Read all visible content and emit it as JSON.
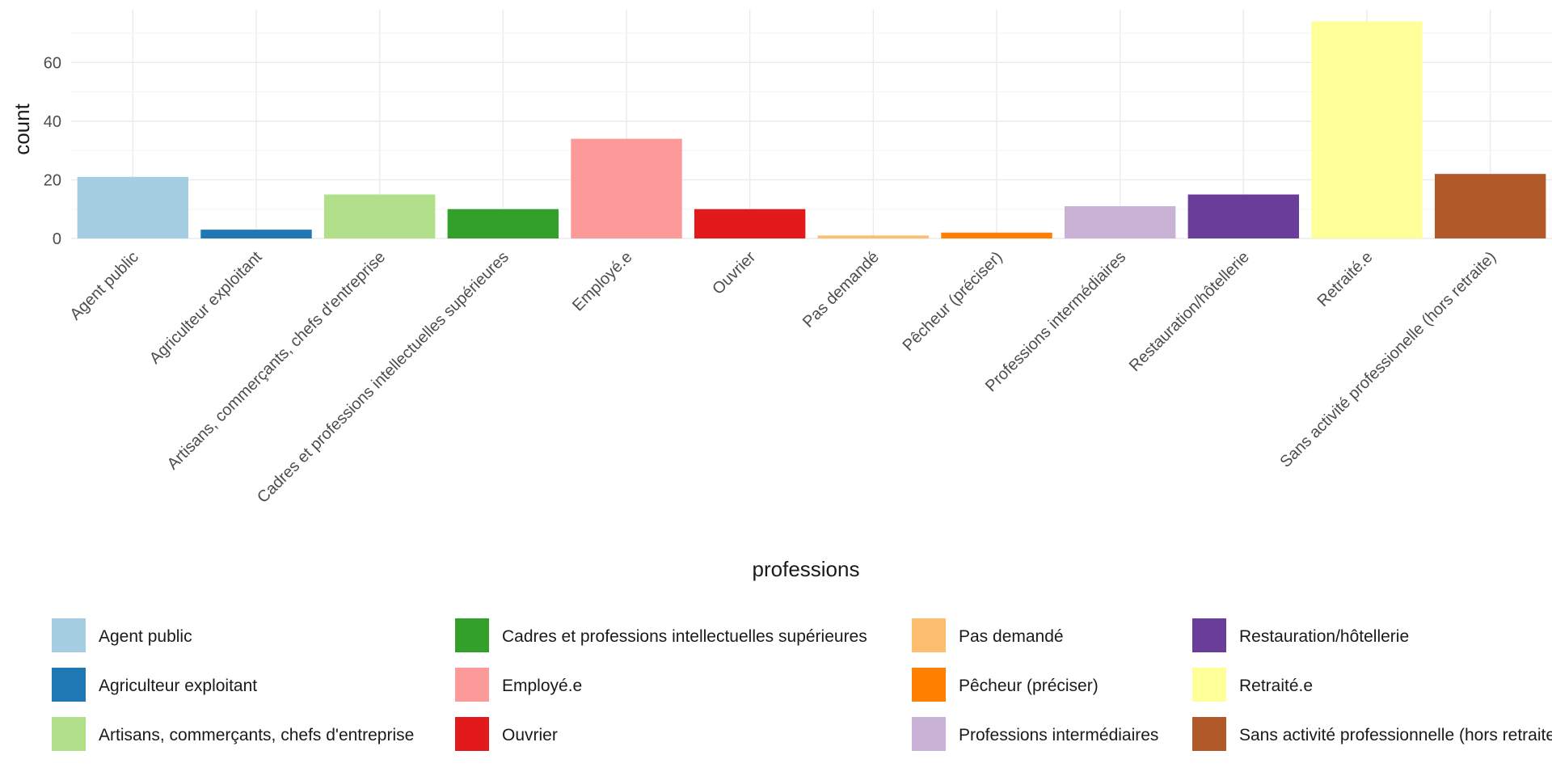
{
  "chart_data": {
    "type": "bar",
    "categories": [
      "Agent public",
      "Agriculteur exploitant",
      "Artisans, commerçants, chefs d'entreprise",
      "Cadres et professions intellectuelles supérieures",
      "Employé.e",
      "Ouvrier",
      "Pas demandé",
      "Pêcheur (préciser)",
      "Professions intermédiaires",
      "Restauration/hôtellerie",
      "Retraité.e",
      "Sans activité professionelle (hors retraite)"
    ],
    "values": [
      21,
      3,
      15,
      10,
      34,
      10,
      1,
      2,
      11,
      15,
      74,
      22
    ],
    "colors": [
      "#A6CEE3",
      "#1F78B4",
      "#B2DF8A",
      "#33A02C",
      "#FB9A99",
      "#E31A1C",
      "#FDBF6F",
      "#FF7F00",
      "#CAB2D6",
      "#6A3D9A",
      "#FFFF99",
      "#B15928"
    ],
    "xlabel": "professions",
    "ylabel": "count",
    "ylim": [
      0,
      78
    ],
    "yticks": [
      0,
      20,
      40,
      60
    ],
    "grid": true,
    "legend": {
      "position": "bottom",
      "columns": 4,
      "entries": [
        "Agent public",
        "Agriculteur exploitant",
        "Artisans, commerçants, chefs d'entreprise",
        "Cadres et professions intellectuelles supérieures",
        "Employé.e",
        "Ouvrier",
        "Pas demandé",
        "Pêcheur (préciser)",
        "Professions intermédiaires",
        "Restauration/hôtellerie",
        "Retraité.e",
        "Sans activité professionnelle (hors retraite)"
      ]
    }
  }
}
